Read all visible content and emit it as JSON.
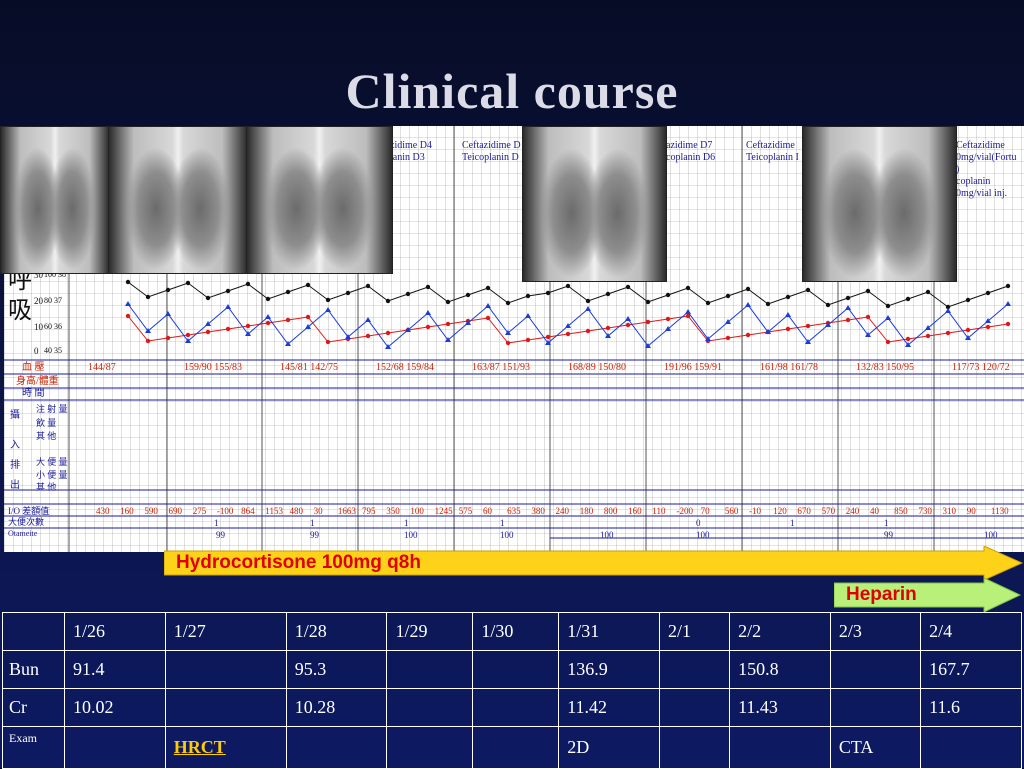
{
  "slide": {
    "title": "Clinical course"
  },
  "flowsheet": {
    "y_axis_labels": [
      "30",
      "20",
      "10",
      "0"
    ],
    "y_axis_secondary": [
      "100 38",
      "80 37",
      "60 36",
      "40 35"
    ],
    "side_char_top": "呼",
    "side_char_bottom": "吸",
    "antibiotic_notes": [
      "zidime D4\nlanin D3",
      "Ceftazidime D\nTeicoplanin D",
      "azidime D7\ncoplanin D6",
      "Ceftazidime\nTeicoplanin I",
      "Ceftazidime\n0mg/vial(Fortu\n)\ncoplanin\n0mg/vial inj."
    ],
    "bp_row": [
      "144/87",
      "159/90 155/83",
      "145/81 142/75",
      "152/68 159/84",
      "163/87 151/93",
      "168/89 150/80",
      "191/96 159/91",
      "161/98 161/78",
      "132/83 150/95",
      "117/73 120/72"
    ],
    "row_labels": [
      "血 壓",
      "身高/體重",
      "時 間",
      "攝",
      "入",
      "排",
      "出",
      "I/O 差額值",
      "大便次數",
      "Otameite"
    ],
    "io_sub_labels": [
      "注 射 量",
      "飲 量",
      "其 他",
      "大 便 量",
      "小 便 量",
      "其 他"
    ],
    "io_balance": [
      "430",
      "160",
      "590",
      "690",
      "275",
      "-100",
      "864",
      "1153",
      "480",
      "30",
      "1663",
      "795",
      "350",
      "100",
      "1245",
      "575",
      "60",
      "635",
      "380",
      "240",
      "180",
      "800",
      "160",
      "110",
      "-200",
      "70",
      "560",
      "-10",
      "120",
      "670",
      "570",
      "240",
      "40",
      "850",
      "730",
      "310",
      "90",
      "1130"
    ],
    "bottom_values": [
      "1",
      "99",
      "1",
      "99",
      "1",
      "100",
      "1",
      "100",
      "100",
      "100",
      "0",
      "1",
      "1",
      "99",
      "100"
    ]
  },
  "banners": {
    "hydrocortisone": "Hydrocortisone 100mg q8h",
    "heparin": "Heparin"
  },
  "lab_table": {
    "dates": [
      "1/26",
      "1/27",
      "1/28",
      "1/29",
      "1/30",
      "1/31",
      "2/1",
      "2/2",
      "2/3",
      "2/4"
    ],
    "rows": [
      {
        "label": "Bun",
        "values": [
          "91.4",
          "",
          "95.3",
          "",
          "",
          "136.9",
          "",
          "150.8",
          "",
          "167.7"
        ]
      },
      {
        "label": "Cr",
        "values": [
          "10.02",
          "",
          "10.28",
          "",
          "",
          "11.42",
          "",
          "11.43",
          "",
          "11.6"
        ]
      },
      {
        "label": "Exam",
        "values": [
          "",
          "HRCT",
          "",
          "",
          "",
          "2D",
          "",
          "",
          "CTA",
          ""
        ]
      }
    ]
  },
  "colors": {
    "background": "#0b1340",
    "title": "#dcdce8",
    "banner_hydrocortisone": "#ffd21a",
    "banner_heparin": "#b8f07a",
    "banner_text": "#e10000",
    "hrct_link": "#ffcc00",
    "series_black": "#111111",
    "series_red": "#e01818",
    "series_blue": "#1a3cd8"
  }
}
